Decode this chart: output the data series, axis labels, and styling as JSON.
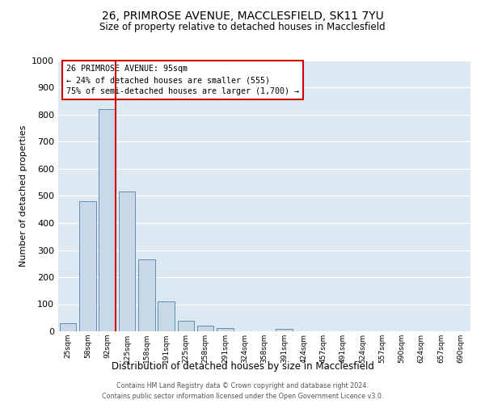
{
  "title1": "26, PRIMROSE AVENUE, MACCLESFIELD, SK11 7YU",
  "title2": "Size of property relative to detached houses in Macclesfield",
  "xlabel": "Distribution of detached houses by size in Macclesfield",
  "ylabel": "Number of detached properties",
  "bar_labels": [
    "25sqm",
    "58sqm",
    "92sqm",
    "125sqm",
    "158sqm",
    "191sqm",
    "225sqm",
    "258sqm",
    "291sqm",
    "324sqm",
    "358sqm",
    "391sqm",
    "424sqm",
    "457sqm",
    "491sqm",
    "524sqm",
    "557sqm",
    "590sqm",
    "624sqm",
    "657sqm",
    "690sqm"
  ],
  "bar_values": [
    30,
    480,
    820,
    515,
    265,
    110,
    40,
    20,
    12,
    0,
    0,
    8,
    0,
    0,
    0,
    0,
    0,
    0,
    0,
    0,
    0
  ],
  "bar_color": "#c8d8e8",
  "bar_edgecolor": "#6090b0",
  "vline_color": "#cc0000",
  "box_text_line1": "26 PRIMROSE AVENUE: 95sqm",
  "box_text_line2": "← 24% of detached houses are smaller (555)",
  "box_text_line3": "75% of semi-detached houses are larger (1,700) →",
  "box_color": "#cc0000",
  "ylim": [
    0,
    1000
  ],
  "yticks": [
    0,
    100,
    200,
    300,
    400,
    500,
    600,
    700,
    800,
    900,
    1000
  ],
  "bg_color": "#dce8f2",
  "footer1": "Contains HM Land Registry data © Crown copyright and database right 2024.",
  "footer2": "Contains public sector information licensed under the Open Government Licence v3.0."
}
